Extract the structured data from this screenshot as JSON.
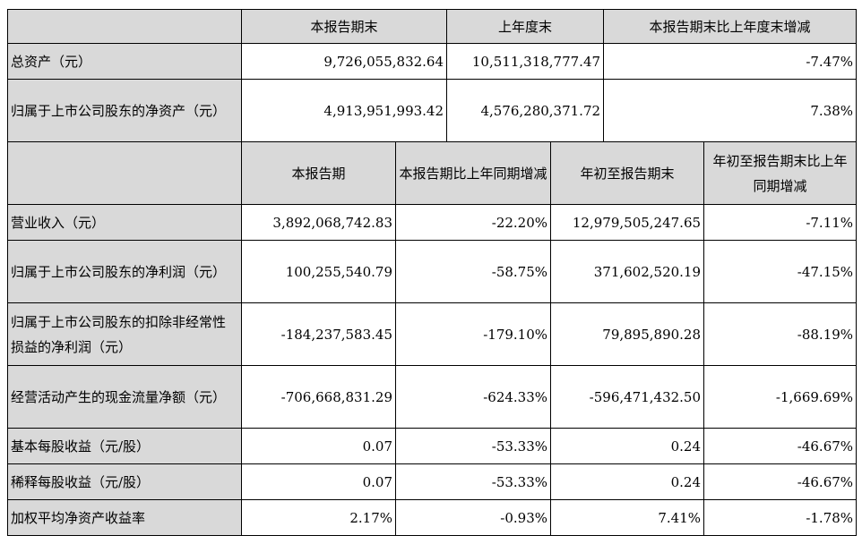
{
  "section1": {
    "headers": [
      "本报告期末",
      "上年度末",
      "本报告期末比上年度末增减"
    ],
    "rows": [
      {
        "label": "总资产（元）",
        "values": [
          "9,726,055,832.64",
          "10,511,318,777.47",
          "-7.47%"
        ]
      },
      {
        "label": "归属于上市公司股东的净资产（元）",
        "values": [
          "4,913,951,993.42",
          "4,576,280,371.72",
          "7.38%"
        ]
      }
    ]
  },
  "section2": {
    "headers": [
      "本报告期",
      "本报告期比上年同期增减",
      "年初至报告期末",
      "年初至报告期末比上年同期增减"
    ],
    "rows": [
      {
        "label": "营业收入（元）",
        "values": [
          "3,892,068,742.83",
          "-22.20%",
          "12,979,505,247.65",
          "-7.11%"
        ]
      },
      {
        "label": "归属于上市公司股东的净利润（元）",
        "values": [
          "100,255,540.79",
          "-58.75%",
          "371,602,520.19",
          "-47.15%"
        ]
      },
      {
        "label": "归属于上市公司股东的扣除非经常性损益的净利润（元）",
        "values": [
          "-184,237,583.45",
          "-179.10%",
          "79,895,890.28",
          "-88.19%"
        ]
      },
      {
        "label": "经营活动产生的现金流量净额（元）",
        "values": [
          "-706,668,831.29",
          "-624.33%",
          "-596,471,432.50",
          "-1,669.69%"
        ]
      },
      {
        "label": "基本每股收益（元/股）",
        "values": [
          "0.07",
          "-53.33%",
          "0.24",
          "-46.67%"
        ]
      },
      {
        "label": "稀释每股收益（元/股）",
        "values": [
          "0.07",
          "-53.33%",
          "0.24",
          "-46.67%"
        ]
      },
      {
        "label": "加权平均净资产收益率",
        "values": [
          "2.17%",
          "-0.93%",
          "7.41%",
          "-1.78%"
        ]
      }
    ]
  }
}
